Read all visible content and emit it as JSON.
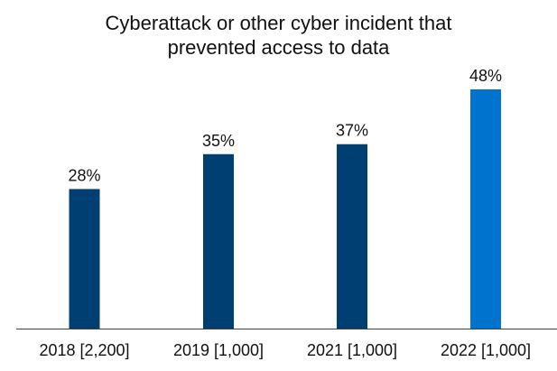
{
  "chart_data": {
    "type": "bar",
    "title_lines": [
      "Cyberattack or other cyber incident that",
      "prevented access to data"
    ],
    "categories": [
      "2018 [2,200]",
      "2019 [1,000]",
      "2021 [1,000]",
      "2022 [1,000]"
    ],
    "values": [
      28,
      35,
      37,
      48
    ],
    "data_labels": [
      "28%",
      "35%",
      "37%",
      "48%"
    ],
    "bar_colors": [
      "#003f72",
      "#003f72",
      "#003f72",
      "#0073cf"
    ],
    "axis_color": "#404040",
    "xlabel": "",
    "ylabel": "",
    "ylim": [
      0,
      52
    ],
    "grid": false,
    "legend": "none"
  }
}
